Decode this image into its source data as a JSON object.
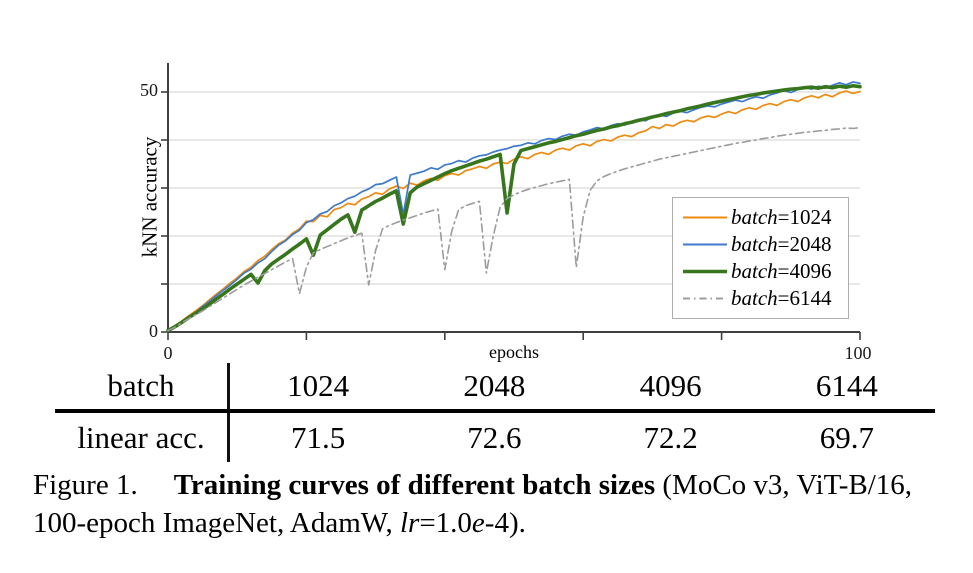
{
  "chart_data": {
    "type": "line",
    "title": "",
    "xlabel": "epochs",
    "ylabel": "kNN accuracy",
    "xlim": [
      0,
      100
    ],
    "ylim": [
      0,
      56
    ],
    "x_ticks": [
      0,
      20,
      40,
      60,
      80,
      100
    ],
    "y_ticks": [
      0,
      10,
      20,
      30,
      40,
      50
    ],
    "grid": "horizontal",
    "legend_position": "lower-right-inside",
    "axis_color": "#3f3f3f",
    "grid_color": "#dadada",
    "axes": {
      "y_tick_top": "50",
      "y_tick_bottom": "0",
      "x_tick_left": "0",
      "x_tick_right": "100"
    },
    "series": [
      {
        "id": "batch-1024",
        "label": "batch=1024",
        "label_math": "batch",
        "label_value": "=1024",
        "color": "#ef8a10",
        "stroke_width": 1.7,
        "dash": null,
        "x_start": 0,
        "x_step": 1,
        "y": [
          0.3,
          1.3,
          2.3,
          3.4,
          4.4,
          5.5,
          6.7,
          7.9,
          9.0,
          10.2,
          11.3,
          12.6,
          13.5,
          14.9,
          15.8,
          17.2,
          18.4,
          19.2,
          20.6,
          21.5,
          23.1,
          23.0,
          24.3,
          24.0,
          25.5,
          25.9,
          26.8,
          26.5,
          27.7,
          28.2,
          29.0,
          28.7,
          29.8,
          30.4,
          29.9,
          31.0,
          30.6,
          31.5,
          32.0,
          31.6,
          32.6,
          33.0,
          32.7,
          33.6,
          34.0,
          34.5,
          34.1,
          35.0,
          35.4,
          35.1,
          36.0,
          36.5,
          36.1,
          37.0,
          37.4,
          37.0,
          37.9,
          38.3,
          37.9,
          38.8,
          39.2,
          38.8,
          39.7,
          40.1,
          39.8,
          40.6,
          41.0,
          40.7,
          41.5,
          41.9,
          42.8,
          42.4,
          43.2,
          42.9,
          43.7,
          44.1,
          43.8,
          44.6,
          45.0,
          44.7,
          45.4,
          45.9,
          45.5,
          46.3,
          46.7,
          46.4,
          47.2,
          47.6,
          47.2,
          48.0,
          48.4,
          48.0,
          48.8,
          49.2,
          48.8,
          49.5,
          49.0,
          49.8,
          50.2,
          49.7,
          50.1
        ]
      },
      {
        "id": "batch-2048",
        "label": "batch=2048",
        "label_math": "batch",
        "label_value": "=2048",
        "color": "#3d79cc",
        "stroke_width": 1.7,
        "dash": null,
        "x_start": 0,
        "x_step": 1,
        "y": [
          0.3,
          1.2,
          2.1,
          3.2,
          4.1,
          5.3,
          6.4,
          7.6,
          8.7,
          9.8,
          11.0,
          12.3,
          13.1,
          14.4,
          15.3,
          16.8,
          18.1,
          19.0,
          20.3,
          21.2,
          22.8,
          23.4,
          24.6,
          25.1,
          26.3,
          26.9,
          27.8,
          28.3,
          29.2,
          29.8,
          30.7,
          30.9,
          31.6,
          32.3,
          24.5,
          32.7,
          33.1,
          33.5,
          34.2,
          33.9,
          34.8,
          35.1,
          35.7,
          35.4,
          36.2,
          36.7,
          36.9,
          37.5,
          37.9,
          38.2,
          38.7,
          38.9,
          39.4,
          39.2,
          39.9,
          40.3,
          40.1,
          40.8,
          41.2,
          41.0,
          41.7,
          42.1,
          42.6,
          42.3,
          43.0,
          43.4,
          43.1,
          43.9,
          44.3,
          44.0,
          44.8,
          45.2,
          44.9,
          45.6,
          46.0,
          45.7,
          46.3,
          46.8,
          47.1,
          46.9,
          47.5,
          47.9,
          48.3,
          48.0,
          48.6,
          49.0,
          48.7,
          49.4,
          49.8,
          50.3,
          49.9,
          50.5,
          51.0,
          50.6,
          51.2,
          50.8,
          51.4,
          51.9,
          51.5,
          52.1,
          51.8
        ]
      },
      {
        "id": "batch-4096",
        "label": "batch=4096",
        "label_math": "batch",
        "label_value": "=4096",
        "color": "#38761d",
        "stroke_width": 3.6,
        "dash": null,
        "x_start": 0,
        "x_step": 1,
        "y": [
          0.3,
          1.1,
          2.0,
          3.0,
          3.9,
          4.8,
          5.8,
          6.9,
          7.9,
          9.0,
          10.0,
          11.0,
          12.0,
          10.2,
          12.8,
          14.2,
          15.2,
          16.2,
          17.3,
          18.3,
          19.4,
          16.0,
          20.2,
          21.3,
          22.4,
          23.5,
          24.4,
          20.8,
          25.4,
          26.3,
          27.2,
          27.9,
          28.7,
          29.4,
          22.5,
          29.0,
          30.2,
          30.9,
          31.6,
          32.3,
          33.0,
          33.6,
          34.1,
          34.6,
          35.1,
          35.6,
          36.0,
          36.5,
          37.0,
          24.8,
          35.0,
          37.8,
          38.2,
          38.6,
          39.0,
          39.4,
          39.7,
          40.1,
          40.5,
          40.9,
          41.2,
          41.6,
          42.0,
          42.3,
          42.7,
          43.0,
          43.4,
          43.7,
          44.1,
          44.4,
          44.8,
          45.1,
          45.5,
          45.8,
          46.1,
          46.5,
          46.8,
          47.1,
          47.5,
          47.8,
          48.1,
          48.4,
          48.7,
          49.0,
          49.3,
          49.5,
          49.8,
          50.0,
          50.2,
          50.4,
          50.6,
          50.7,
          50.9,
          51.0,
          50.8,
          51.1,
          50.9,
          51.2,
          51.0,
          51.3,
          51.1
        ]
      },
      {
        "id": "batch-6144",
        "label": "batch=6144",
        "label_math": "batch",
        "label_value": "=6144",
        "color": "#9c9c9c",
        "stroke_width": 1.6,
        "dash": "8 4 2 4",
        "x_start": 0,
        "x_step": 1,
        "y": [
          0.3,
          1.0,
          1.9,
          2.8,
          3.6,
          4.4,
          5.3,
          6.2,
          7.1,
          8.0,
          8.9,
          9.8,
          10.6,
          11.4,
          12.2,
          13.0,
          13.8,
          14.6,
          15.3,
          8.0,
          13.5,
          16.5,
          17.2,
          17.8,
          18.4,
          19.0,
          19.6,
          20.1,
          20.6,
          9.8,
          17.0,
          21.5,
          22.2,
          22.8,
          23.3,
          23.8,
          24.3,
          24.8,
          25.2,
          25.6,
          13.0,
          21.0,
          25.5,
          26.3,
          26.8,
          27.2,
          12.3,
          20.0,
          26.0,
          27.8,
          28.6,
          29.2,
          29.7,
          30.1,
          30.5,
          30.9,
          31.2,
          31.5,
          31.8,
          13.5,
          24.0,
          29.5,
          31.5,
          32.4,
          33.0,
          33.5,
          34.0,
          34.4,
          34.8,
          35.2,
          35.6,
          36.0,
          36.3,
          36.6,
          36.9,
          37.2,
          37.5,
          37.8,
          38.1,
          38.4,
          38.7,
          39.0,
          39.3,
          39.5,
          39.8,
          40.0,
          40.3,
          40.5,
          40.8,
          41.0,
          41.2,
          41.4,
          41.6,
          41.7,
          41.9,
          42.0,
          42.2,
          42.3,
          42.5,
          42.4,
          42.6
        ]
      }
    ]
  },
  "table": {
    "header_label": "batch",
    "row_label": "linear acc.",
    "columns": [
      "1024",
      "2048",
      "4096",
      "6144"
    ],
    "values": [
      "71.5",
      "72.6",
      "72.2",
      "69.7"
    ]
  },
  "caption": {
    "segments": [
      {
        "t": "Figure 1."
      },
      {
        "t": "Training curves of different batch sizes"
      },
      {
        "t": " (MoCo v3, ViT-B/16, 100-epoch ImageNet, AdamW, "
      },
      {
        "t": "lr"
      },
      {
        "t": "=1.0"
      },
      {
        "t": "e"
      },
      {
        "t": "-4)."
      }
    ]
  }
}
